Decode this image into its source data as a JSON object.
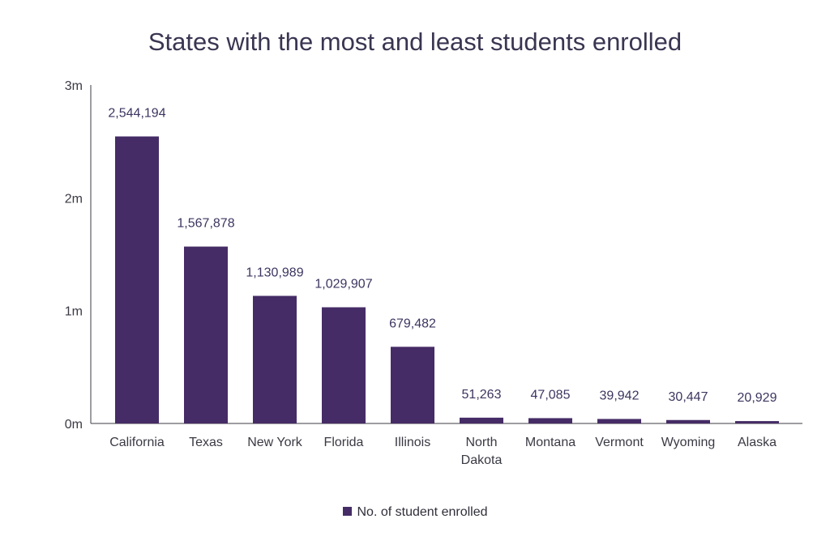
{
  "chart_data": {
    "type": "bar",
    "title": "States with the most and least students enrolled",
    "categories": [
      "California",
      "Texas",
      "New York",
      "Florida",
      "Illinois",
      "North Dakota",
      "Montana",
      "Vermont",
      "Wyoming",
      "Alaska"
    ],
    "category_label_lines": [
      [
        "California"
      ],
      [
        "Texas"
      ],
      [
        "New York"
      ],
      [
        "Florida"
      ],
      [
        "Illinois"
      ],
      [
        "North",
        "Dakota"
      ],
      [
        "Montana"
      ],
      [
        "Vermont"
      ],
      [
        "Wyoming"
      ],
      [
        "Alaska"
      ]
    ],
    "series": [
      {
        "name": "No. of student enrolled",
        "values": [
          2544194,
          1567878,
          1130989,
          1029907,
          679482,
          51263,
          47085,
          39942,
          30447,
          20929
        ],
        "labels": [
          "2,544,194",
          "1,567,878",
          "1,130,989",
          "1,029,907",
          "679,482",
          "51,263",
          "47,085",
          "39,942",
          "30,447",
          "20,929"
        ]
      }
    ],
    "ylim": [
      0,
      3000000
    ],
    "y_ticks": [
      0,
      1000000,
      2000000,
      3000000
    ],
    "y_tick_labels": [
      "0m",
      "1m",
      "2m",
      "3m"
    ],
    "xlabel": "",
    "ylabel": "",
    "grid": false,
    "legend_position": "bottom-center",
    "bar_color": "#452c66"
  }
}
